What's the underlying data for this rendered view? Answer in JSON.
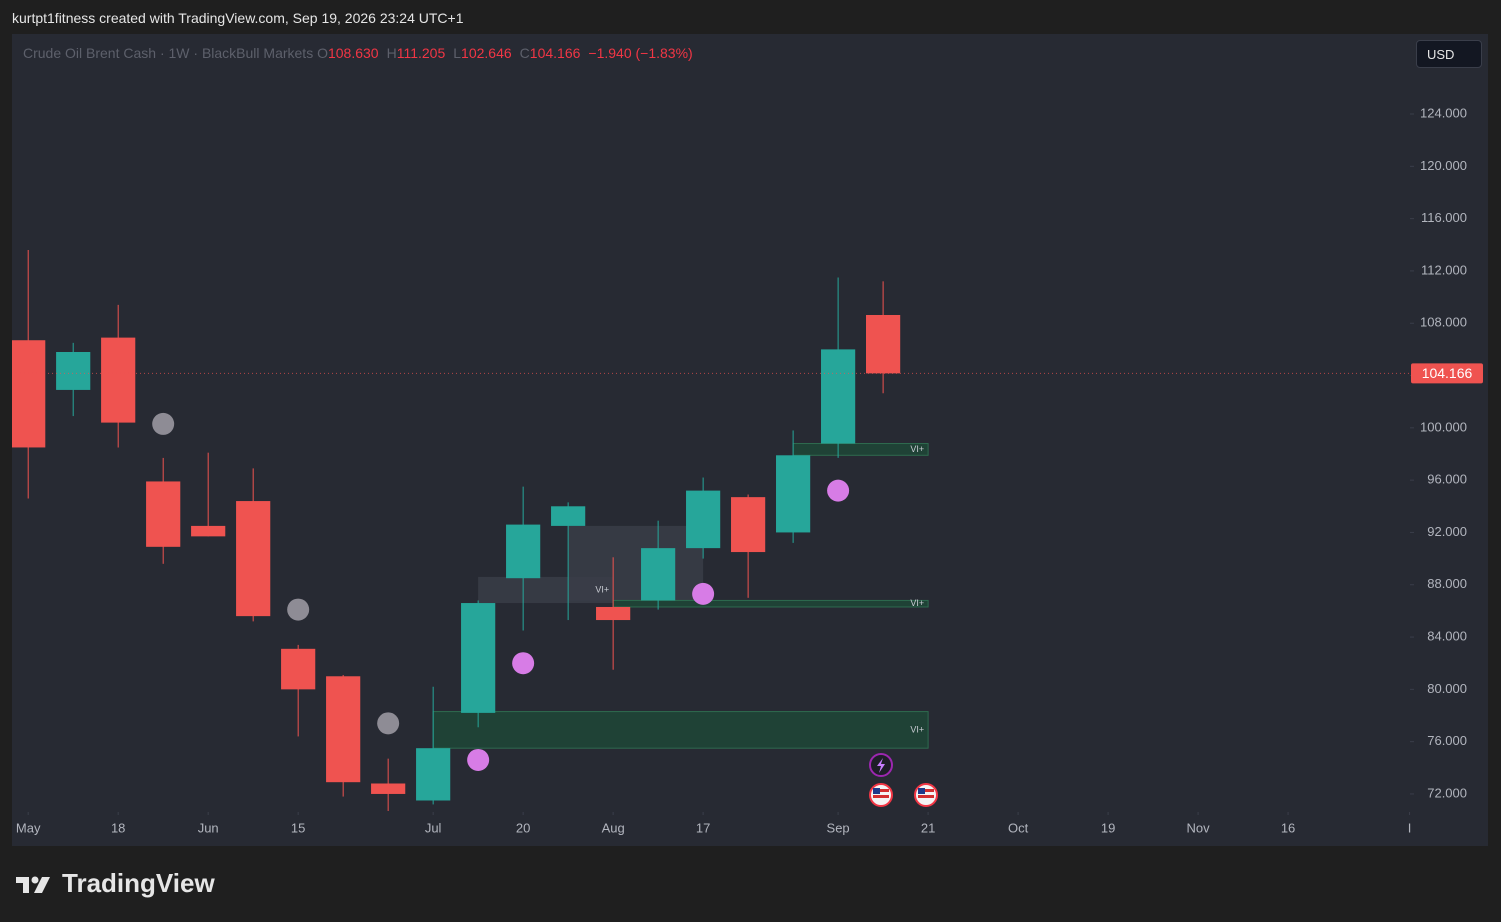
{
  "header": "kurtpt1fitness created with TradingView.com, Sep 19, 2026 23:24 UTC+1",
  "footer": "TradingView",
  "chart_data": {
    "type": "candlestick",
    "title": "Crude Oil Brent Cash · 1W · BlackBull Markets",
    "legend": [
      {
        "key": "O",
        "value": "108.630"
      },
      {
        "key": "H",
        "value": "111.205"
      },
      {
        "key": "L",
        "value": "102.646"
      },
      {
        "key": "C",
        "value": "104.166"
      }
    ],
    "change": "−1.940 (−1.83%)",
    "currency": "USD",
    "up_color": "#26a69a",
    "down_color": "#ef5350",
    "x": [
      0,
      1,
      2,
      3,
      4,
      5,
      6,
      7,
      8,
      9,
      10,
      11,
      12,
      13,
      14,
      15,
      16,
      17,
      18,
      19
    ],
    "open": [
      106.7,
      102.9,
      106.9,
      95.9,
      92.5,
      94.4,
      83.1,
      81.0,
      72.8,
      71.5,
      78.2,
      88.5,
      92.5,
      86.3,
      86.8,
      90.8,
      94.7,
      92.0,
      98.8,
      108.63
    ],
    "high": [
      113.6,
      106.5,
      109.4,
      97.7,
      98.1,
      96.9,
      83.4,
      81.1,
      74.7,
      80.2,
      86.8,
      95.5,
      94.3,
      90.1,
      92.9,
      96.2,
      94.9,
      99.8,
      111.5,
      111.205
    ],
    "low": [
      94.6,
      100.9,
      98.5,
      89.6,
      91.7,
      85.2,
      76.4,
      71.8,
      70.7,
      71.2,
      77.1,
      84.5,
      85.3,
      81.5,
      86.1,
      90.0,
      87.0,
      91.2,
      97.7,
      102.646
    ],
    "close": [
      98.5,
      105.8,
      100.4,
      90.9,
      91.7,
      85.6,
      80.0,
      72.9,
      72.0,
      75.5,
      86.6,
      92.6,
      94.0,
      85.3,
      90.8,
      95.2,
      90.5,
      97.9,
      106.0,
      104.166
    ],
    "markers": [
      {
        "color": "#8e8c95",
        "x": [
          3,
          6,
          8
        ],
        "values": [
          100.3,
          86.1,
          77.4
        ]
      },
      {
        "color": "#d77ce6",
        "x": [
          10,
          11,
          15,
          18
        ],
        "values": [
          74.6,
          82.0,
          87.3,
          95.2
        ]
      }
    ],
    "zones": [
      {
        "color": "#3a3d48",
        "x": [
          12,
          15
        ],
        "values": [
          86.8,
          92.5
        ]
      },
      {
        "color": "#3a3d48",
        "x": [
          10,
          13
        ],
        "values": [
          86.6,
          88.6
        ],
        "label": "VI+"
      },
      {
        "color": "#1f4637",
        "x": [
          9,
          20
        ],
        "values": [
          75.5,
          78.3
        ],
        "label": "VI+"
      },
      {
        "color": "#1f4637",
        "x": [
          13,
          20
        ],
        "values": [
          86.3,
          86.8
        ],
        "label": "VI+"
      },
      {
        "color": "#1f4637",
        "x": [
          17,
          20
        ],
        "values": [
          97.9,
          98.8
        ],
        "label": "VI+"
      }
    ],
    "xlim": [
      -0.36,
      30.71
    ],
    "xticks": [
      {
        "value": 0,
        "label": "May"
      },
      {
        "value": 2,
        "label": "18"
      },
      {
        "value": 4,
        "label": "Jun"
      },
      {
        "value": 6,
        "label": "15"
      },
      {
        "value": 9,
        "label": "Jul"
      },
      {
        "value": 11,
        "label": "20"
      },
      {
        "value": 13,
        "label": "Aug"
      },
      {
        "value": 15,
        "label": "17"
      },
      {
        "value": 18,
        "label": "Sep"
      },
      {
        "value": 20,
        "label": "21"
      },
      {
        "value": 22,
        "label": "Oct"
      },
      {
        "value": 24,
        "label": "19"
      },
      {
        "value": 26,
        "label": "Nov"
      },
      {
        "value": 28,
        "label": "16"
      },
      {
        "value": 30.7,
        "label": "I"
      }
    ],
    "ylim": [
      70.62,
      130.12
    ],
    "yticks": [
      {
        "value": 72,
        "label": "72.000"
      },
      {
        "value": 76,
        "label": "76.000"
      },
      {
        "value": 80,
        "label": "80.000"
      },
      {
        "value": 84,
        "label": "84.000"
      },
      {
        "value": 88,
        "label": "88.000"
      },
      {
        "value": 92,
        "label": "92.000"
      },
      {
        "value": 96,
        "label": "96.000"
      },
      {
        "value": 100,
        "label": "100.000"
      },
      {
        "value": 104,
        "label": "104.000"
      },
      {
        "value": 108,
        "label": "108.000"
      },
      {
        "value": 112,
        "label": "112.000"
      },
      {
        "value": 116,
        "label": "116.000"
      },
      {
        "value": 120,
        "label": "120.000"
      },
      {
        "value": 124,
        "label": "124.000"
      }
    ],
    "grid": false
  }
}
